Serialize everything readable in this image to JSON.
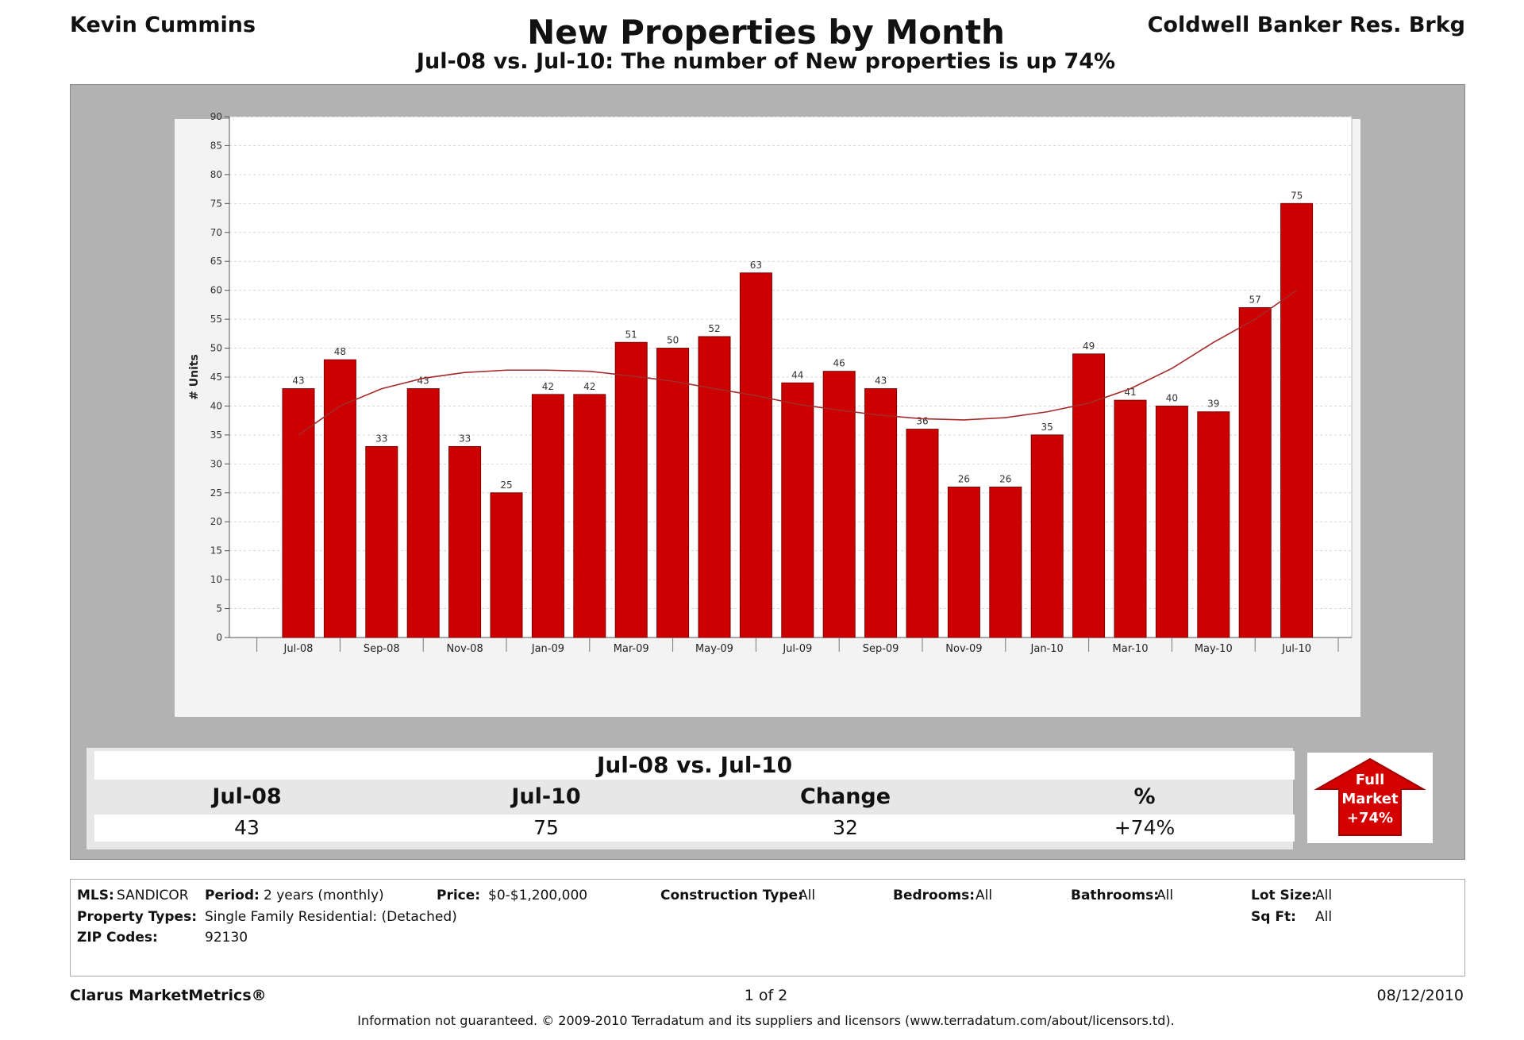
{
  "header": {
    "agent": "Kevin Cummins",
    "title": "New Properties by Month",
    "subtitle": "Jul-08 vs. Jul-10: The number of New properties is up 74%",
    "brokerage": "Coldwell Banker Res. Brkg"
  },
  "chart_data": {
    "type": "bar",
    "ylabel": "# Units",
    "ylim": [
      0,
      90
    ],
    "ytick_step": 5,
    "grid": true,
    "bar_color": "#cc0000",
    "trend_color": "#a52a2a",
    "categories": [
      "Jul-08",
      "Aug-08",
      "Sep-08",
      "Oct-08",
      "Nov-08",
      "Dec-08",
      "Jan-09",
      "Feb-09",
      "Mar-09",
      "Apr-09",
      "May-09",
      "Jun-09",
      "Jul-09",
      "Aug-09",
      "Sep-09",
      "Oct-09",
      "Nov-09",
      "Dec-09",
      "Jan-10",
      "Feb-10",
      "Mar-10",
      "Apr-10",
      "May-10",
      "Jun-10",
      "Jul-10"
    ],
    "xtick_labels": [
      "Jul-08",
      "Sep-08",
      "Nov-08",
      "Jan-09",
      "Mar-09",
      "May-09",
      "Jul-09",
      "Sep-09",
      "Nov-09",
      "Jan-10",
      "Mar-10",
      "May-10",
      "Jul-10"
    ],
    "values": [
      43,
      48,
      33,
      43,
      33,
      25,
      42,
      42,
      51,
      50,
      52,
      63,
      44,
      46,
      43,
      36,
      26,
      26,
      35,
      49,
      41,
      40,
      39,
      57,
      75
    ],
    "trend": [
      35,
      40,
      43,
      44.8,
      45.8,
      46.2,
      46.2,
      46,
      45.2,
      44.3,
      43,
      41.8,
      40.3,
      39.3,
      38.4,
      37.8,
      37.6,
      38,
      39,
      40.5,
      43,
      46.5,
      51,
      55,
      60
    ]
  },
  "summary": {
    "title": "Jul-08 vs. Jul-10",
    "headers": [
      "Jul-08",
      "Jul-10",
      "Change",
      "%"
    ],
    "values": [
      "43",
      "75",
      "32",
      "+74%"
    ],
    "badge_line1": "Full",
    "badge_line2": "Market",
    "badge_line3": "+74%",
    "badge_color": "#d40000"
  },
  "criteria": {
    "mls_label": "MLS:",
    "mls_value": "SANDICOR",
    "period_label": "Period:",
    "period_value": "2 years (monthly)",
    "price_label": "Price:",
    "price_value": "$0-$1,200,000",
    "construction_label": "Construction Type:",
    "construction_value": "All",
    "bedrooms_label": "Bedrooms:",
    "bedrooms_value": "All",
    "bathrooms_label": "Bathrooms:",
    "bathrooms_value": "All",
    "lotsize_label": "Lot Size:",
    "lotsize_value": "All",
    "proptypes_label": "Property Types:",
    "proptypes_value": "Single Family Residential: (Detached)",
    "sqft_label": "Sq Ft:",
    "sqft_value": "All",
    "zip_label": "ZIP Codes:",
    "zip_value": "92130"
  },
  "footer": {
    "product": "Clarus MarketMetrics®",
    "page": "1 of 2",
    "date": "08/12/2010",
    "disclaimer": "Information not guaranteed.  © 2009-2010 Terradatum and its suppliers and licensors (www.terradatum.com/about/licensors.td)."
  }
}
